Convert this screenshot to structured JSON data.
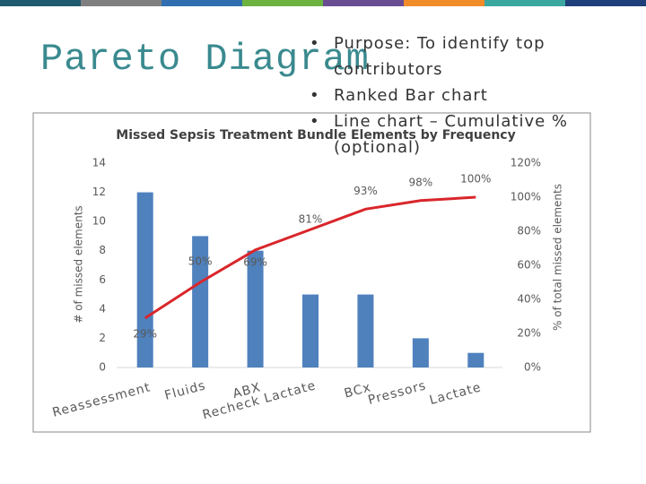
{
  "slide": {
    "title": "Pareto Diagram",
    "bullets": [
      "Purpose: To identify top contributors",
      "Ranked Bar chart",
      "Line chart – Cumulative % (optional)"
    ]
  },
  "chart_data": {
    "type": "bar",
    "title": "Missed Sepsis Treatment Bundle Elements by Frequency",
    "ylabel": "# of missed elements",
    "y2label": "% of total missed elements",
    "categories": [
      "Reassessment",
      "Fluids",
      "ABX",
      "Recheck Lactate",
      "BCx",
      "Pressors",
      "Lactate"
    ],
    "series": [
      {
        "name": "Missed elements",
        "type": "bar",
        "color": "#4f81bd",
        "values": [
          12,
          9,
          8,
          5,
          5,
          2,
          1
        ]
      },
      {
        "name": "Cumulative %",
        "type": "line",
        "axis": "y2",
        "color": "#d9262b",
        "values": [
          29,
          50,
          69,
          81,
          93,
          98,
          100
        ],
        "value_labels": [
          "29%",
          "50%",
          "69%",
          "81%",
          "93%",
          "98%",
          "100%"
        ]
      }
    ],
    "ylim": [
      0,
      14
    ],
    "yticks": [
      0,
      2,
      4,
      6,
      8,
      10,
      12,
      14
    ],
    "y2lim": [
      0,
      120
    ],
    "y2ticks": [
      {
        "value": 0,
        "label": "0%"
      },
      {
        "value": 20,
        "label": "20%"
      },
      {
        "value": 40,
        "label": "40%"
      },
      {
        "value": 60,
        "label": "60%"
      },
      {
        "value": 80,
        "label": "80%"
      },
      {
        "value": 100,
        "label": "100%"
      },
      {
        "value": 120,
        "label": "120%"
      }
    ],
    "grid": false
  }
}
